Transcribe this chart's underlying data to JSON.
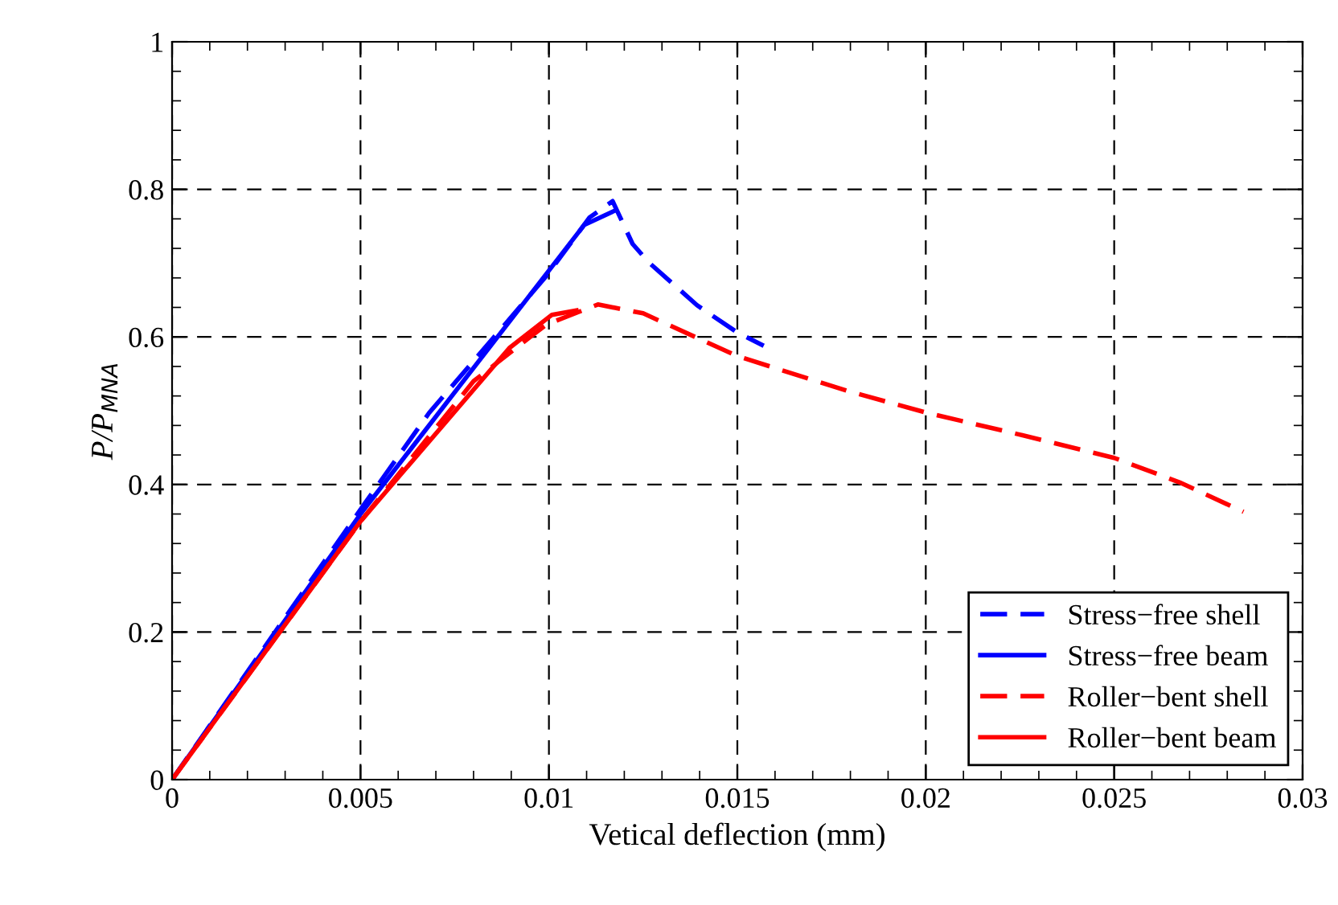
{
  "chart_data": {
    "type": "line",
    "xlabel": "Vetical deflection (mm)",
    "ylabel": "P/P$_{MNA}$",
    "xlim": [
      0,
      0.03
    ],
    "ylim": [
      0,
      1
    ],
    "xticks": [
      0,
      0.005,
      0.01,
      0.015,
      0.02,
      0.025,
      0.03
    ],
    "yticks": [
      0,
      0.2,
      0.4,
      0.6,
      0.8,
      1
    ],
    "grid": true,
    "legend": "bottom right",
    "marker": "none",
    "series": [
      {
        "name": "Stress−free shell",
        "color": "#0000ff",
        "line_style": "dashed",
        "x": [
          0,
          0.00511,
          0.00682,
          0.00994,
          0.01108,
          0.01169,
          0.01222,
          0.01265,
          0.01393,
          0.015,
          0.0157
        ],
        "values": [
          0,
          0.374,
          0.497,
          0.683,
          0.762,
          0.784,
          0.726,
          0.701,
          0.643,
          0.606,
          0.588
        ]
      },
      {
        "name": "Stress−free beam",
        "color": "#0000ff",
        "line_style": "solid",
        "x": [
          0,
          0.005,
          0.01,
          0.01094,
          0.0117
        ],
        "values": [
          0,
          0.36,
          0.69,
          0.752,
          0.77
        ]
      },
      {
        "name": "Roller−bent shell",
        "color": "#ff0000",
        "line_style": "dashed",
        "x": [
          0,
          0.005,
          0.008,
          0.0095,
          0.00994,
          0.0113,
          0.0125,
          0.015,
          0.01791,
          0.02004,
          0.02246,
          0.025,
          0.02673,
          0.02843
        ],
        "values": [
          0,
          0.35,
          0.54,
          0.6,
          0.617,
          0.644,
          0.632,
          0.574,
          0.527,
          0.497,
          0.468,
          0.436,
          0.403,
          0.363
        ]
      },
      {
        "name": "Roller−bent beam",
        "color": "#ff0000",
        "line_style": "solid",
        "x": [
          0,
          0.005,
          0.00895,
          0.01008,
          0.01073
        ],
        "values": [
          0,
          0.35,
          0.585,
          0.63,
          0.636
        ]
      }
    ]
  }
}
